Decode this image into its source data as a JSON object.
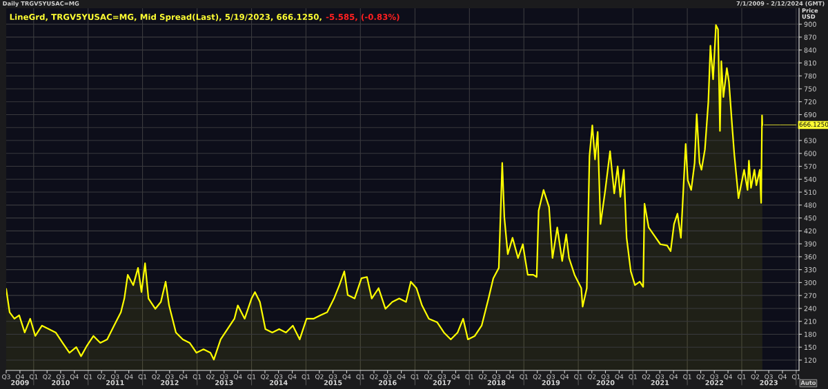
{
  "chart_data": {
    "type": "area",
    "title": "LineGrd, TRGV5YUSAC=MG, Mid Spread(Last), 5/19/2023, 666.1250,",
    "subtitle": "-5.585, (-0.83%)",
    "ylabel": "Price\nUSD",
    "annotations": [
      "Daily TRGV5YUSAC=MG",
      "7/1/2009 - 2/12/2024 (GMT)",
      "Auto",
      {
        "text": "666.1250",
        "x": "2023-05-19",
        "y": 666.125
      }
    ],
    "x": [
      "2009-07-01",
      "2009-07-24",
      "2009-08-25",
      "2009-09-26",
      "2009-11-02",
      "2009-12-09",
      "2010-01-12",
      "2010-02-26",
      "2010-04-13",
      "2010-05-29",
      "2010-07-14",
      "2010-08-29",
      "2010-10-14",
      "2010-11-15",
      "2010-12-22",
      "2011-02-06",
      "2011-03-24",
      "2011-05-09",
      "2011-06-24",
      "2011-08-09",
      "2011-09-01",
      "2011-09-24",
      "2011-10-31",
      "2011-12-02",
      "2011-12-25",
      "2012-01-18",
      "2012-02-10",
      "2012-03-27",
      "2012-05-03",
      "2012-06-04",
      "2012-06-27",
      "2012-08-12",
      "2012-09-27",
      "2012-11-12",
      "2012-12-28",
      "2013-02-13",
      "2013-03-31",
      "2013-04-23",
      "2013-06-08",
      "2013-07-24",
      "2013-09-08",
      "2013-10-01",
      "2013-11-16",
      "2014-01-01",
      "2014-01-24",
      "2014-02-26",
      "2014-04-04",
      "2014-05-20",
      "2014-07-05",
      "2014-08-20",
      "2014-10-05",
      "2014-11-20",
      "2015-01-05",
      "2015-02-20",
      "2015-04-07",
      "2015-05-23",
      "2015-07-08",
      "2015-08-13",
      "2015-09-15",
      "2015-10-08",
      "2015-11-23",
      "2016-01-08",
      "2016-02-14",
      "2016-03-17",
      "2016-05-02",
      "2016-06-17",
      "2016-08-02",
      "2016-09-17",
      "2016-11-02",
      "2016-12-04",
      "2017-01-11",
      "2017-02-17",
      "2017-04-04",
      "2017-05-29",
      "2017-07-14",
      "2017-08-29",
      "2017-10-14",
      "2017-11-20",
      "2017-12-22",
      "2018-02-06",
      "2018-03-24",
      "2018-05-09",
      "2018-06-10",
      "2018-07-17",
      "2018-08-09",
      "2018-08-23",
      "2018-09-15",
      "2018-10-17",
      "2018-11-23",
      "2018-12-25",
      "2019-01-27",
      "2019-03-05",
      "2019-03-28",
      "2019-04-10",
      "2019-05-13",
      "2019-06-19",
      "2019-07-12",
      "2019-08-13",
      "2019-09-15",
      "2019-10-12",
      "2019-10-31",
      "2019-12-07",
      "2020-01-21",
      "2020-01-30",
      "2020-02-27",
      "2020-03-16",
      "2020-04-04",
      "2020-04-22",
      "2020-05-10",
      "2020-05-29",
      "2020-06-30",
      "2020-08-01",
      "2020-08-29",
      "2020-09-21",
      "2020-10-09",
      "2020-11-01",
      "2020-11-20",
      "2020-12-18",
      "2021-01-15",
      "2021-02-16",
      "2021-03-11",
      "2021-03-20",
      "2021-04-17",
      "2021-05-19",
      "2021-07-04",
      "2021-08-19",
      "2021-09-11",
      "2021-10-04",
      "2021-10-27",
      "2021-11-19",
      "2021-12-21",
      "2022-01-04",
      "2022-01-27",
      "2022-02-19",
      "2022-03-05",
      "2022-03-24",
      "2022-04-06",
      "2022-04-29",
      "2022-05-22",
      "2022-06-05",
      "2022-06-23",
      "2022-07-12",
      "2022-07-26",
      "2022-08-08",
      "2022-08-17",
      "2022-08-31",
      "2022-09-23",
      "2022-10-07",
      "2022-10-30",
      "2022-11-12",
      "2022-12-05",
      "2022-12-10",
      "2023-01-17",
      "2023-02-09",
      "2023-02-18",
      "2023-03-04",
      "2023-03-27",
      "2023-04-09",
      "2023-05-02",
      "2023-05-11",
      "2023-05-17",
      "2023-05-19"
    ],
    "series": [
      {
        "color": "#ffff00",
        "values": [
          285,
          231,
          216,
          224,
          184,
          216,
          176,
          200,
          192,
          184,
          160,
          137,
          150,
          129,
          152,
          176,
          160,
          168,
          200,
          231,
          263,
          318,
          294,
          334,
          278,
          345,
          263,
          239,
          255,
          302,
          247,
          184,
          168,
          160,
          137,
          145,
          137,
          121,
          168,
          192,
          216,
          247,
          216,
          263,
          278,
          255,
          192,
          184,
          192,
          184,
          200,
          168,
          216,
          216,
          224,
          231,
          263,
          294,
          326,
          271,
          263,
          310,
          313,
          263,
          287,
          239,
          255,
          263,
          255,
          302,
          287,
          247,
          216,
          208,
          184,
          168,
          184,
          216,
          168,
          176,
          200,
          263,
          310,
          334,
          578,
          452,
          366,
          404,
          357,
          389,
          318,
          318,
          313,
          467,
          515,
          475,
          357,
          428,
          350,
          412,
          357,
          318,
          287,
          244,
          287,
          594,
          665,
          586,
          650,
          436,
          515,
          605,
          507,
          570,
          499,
          562,
          404,
          326,
          294,
          302,
          290,
          483,
          428,
          412,
          389,
          386,
          373,
          436,
          460,
          404,
          622,
          538,
          515,
          578,
          691,
          578,
          562,
          609,
          720,
          850,
          772,
          898,
          888,
          652,
          814,
          731,
          798,
          767,
          657,
          598,
          515,
          496,
          562,
          515,
          583,
          520,
          562,
          526,
          562,
          485,
          688,
          666.125
        ]
      }
    ],
    "xlim": [
      "2009-07-01",
      "2024-01-20"
    ],
    "xticks": [
      {
        "value": "2009-07-01",
        "label": "Q3"
      },
      {
        "value": "2009-10-01",
        "label": "Q4"
      },
      {
        "value": "2010-01-01",
        "label": "Q1"
      },
      {
        "value": "2010-04-01",
        "label": "Q2"
      },
      {
        "value": "2010-07-01",
        "label": "Q3"
      },
      {
        "value": "2010-10-01",
        "label": "Q4"
      },
      {
        "value": "2011-01-01",
        "label": "Q1"
      },
      {
        "value": "2011-04-01",
        "label": "Q2"
      },
      {
        "value": "2011-07-01",
        "label": "Q3"
      },
      {
        "value": "2011-10-01",
        "label": "Q4"
      },
      {
        "value": "2012-01-01",
        "label": "Q1"
      },
      {
        "value": "2012-04-01",
        "label": "Q2"
      },
      {
        "value": "2012-07-01",
        "label": "Q3"
      },
      {
        "value": "2012-10-01",
        "label": "Q4"
      },
      {
        "value": "2013-01-01",
        "label": "Q1"
      },
      {
        "value": "2013-04-01",
        "label": "Q2"
      },
      {
        "value": "2013-07-01",
        "label": "Q3"
      },
      {
        "value": "2013-10-01",
        "label": "Q4"
      },
      {
        "value": "2014-01-01",
        "label": "Q1"
      },
      {
        "value": "2014-04-01",
        "label": "Q2"
      },
      {
        "value": "2014-07-01",
        "label": "Q3"
      },
      {
        "value": "2014-10-01",
        "label": "Q4"
      },
      {
        "value": "2015-01-01",
        "label": "Q1"
      },
      {
        "value": "2015-04-01",
        "label": "Q2"
      },
      {
        "value": "2015-07-01",
        "label": "Q3"
      },
      {
        "value": "2015-10-01",
        "label": "Q4"
      },
      {
        "value": "2016-01-01",
        "label": "Q1"
      },
      {
        "value": "2016-04-01",
        "label": "Q2"
      },
      {
        "value": "2016-07-01",
        "label": "Q3"
      },
      {
        "value": "2016-10-01",
        "label": "Q4"
      },
      {
        "value": "2017-01-01",
        "label": "Q1"
      },
      {
        "value": "2017-04-01",
        "label": "Q2"
      },
      {
        "value": "2017-07-01",
        "label": "Q3"
      },
      {
        "value": "2017-10-01",
        "label": "Q4"
      },
      {
        "value": "2018-01-01",
        "label": "Q1"
      },
      {
        "value": "2018-04-01",
        "label": "Q2"
      },
      {
        "value": "2018-07-01",
        "label": "Q3"
      },
      {
        "value": "2018-10-01",
        "label": "Q4"
      },
      {
        "value": "2019-01-01",
        "label": "Q1"
      },
      {
        "value": "2019-04-01",
        "label": "Q2"
      },
      {
        "value": "2019-07-01",
        "label": "Q3"
      },
      {
        "value": "2019-10-01",
        "label": "Q4"
      },
      {
        "value": "2020-01-01",
        "label": "Q1"
      },
      {
        "value": "2020-04-01",
        "label": "Q2"
      },
      {
        "value": "2020-07-01",
        "label": "Q3"
      },
      {
        "value": "2020-10-01",
        "label": "Q4"
      },
      {
        "value": "2021-01-01",
        "label": "Q1"
      },
      {
        "value": "2021-04-01",
        "label": "Q2"
      },
      {
        "value": "2021-07-01",
        "label": "Q3"
      },
      {
        "value": "2021-10-01",
        "label": "Q4"
      },
      {
        "value": "2022-01-01",
        "label": "Q1"
      },
      {
        "value": "2022-04-01",
        "label": "Q2"
      },
      {
        "value": "2022-07-01",
        "label": "Q3"
      },
      {
        "value": "2022-10-01",
        "label": "Q4"
      },
      {
        "value": "2023-01-01",
        "label": "Q1"
      },
      {
        "value": "2023-04-01",
        "label": "Q2"
      },
      {
        "value": "2023-07-01",
        "label": "Q3"
      },
      {
        "value": "2023-10-01",
        "label": "Q4"
      },
      {
        "value": "2024-01-01",
        "label": "Q1"
      }
    ],
    "x2ticks": [
      {
        "value": "2009-10-01",
        "label": "2009"
      },
      {
        "value": "2010-07-01",
        "label": "2010"
      },
      {
        "value": "2011-07-01",
        "label": "2011"
      },
      {
        "value": "2012-07-01",
        "label": "2012"
      },
      {
        "value": "2013-07-01",
        "label": "2013"
      },
      {
        "value": "2014-07-01",
        "label": "2014"
      },
      {
        "value": "2015-07-01",
        "label": "2015"
      },
      {
        "value": "2016-07-01",
        "label": "2016"
      },
      {
        "value": "2017-07-01",
        "label": "2017"
      },
      {
        "value": "2018-07-01",
        "label": "2018"
      },
      {
        "value": "2019-07-01",
        "label": "2019"
      },
      {
        "value": "2020-07-01",
        "label": "2020"
      },
      {
        "value": "2021-07-01",
        "label": "2021"
      },
      {
        "value": "2022-07-01",
        "label": "2022"
      },
      {
        "value": "2023-07-01",
        "label": "2023"
      },
      {
        "value": "2010-01-01",
        "label": null
      },
      {
        "value": "2011-01-01",
        "label": null
      },
      {
        "value": "2012-01-01",
        "label": null
      },
      {
        "value": "2013-01-01",
        "label": null
      },
      {
        "value": "2014-01-01",
        "label": null
      },
      {
        "value": "2015-01-01",
        "label": null
      },
      {
        "value": "2016-01-01",
        "label": null
      },
      {
        "value": "2017-01-01",
        "label": null
      },
      {
        "value": "2018-01-01",
        "label": null
      },
      {
        "value": "2019-01-01",
        "label": null
      },
      {
        "value": "2020-01-01",
        "label": null
      },
      {
        "value": "2021-01-01",
        "label": null
      },
      {
        "value": "2022-01-01",
        "label": null
      },
      {
        "value": "2023-01-01",
        "label": null
      },
      {
        "value": "2024-01-01",
        "label": null
      }
    ],
    "x2lim": [
      "2009-07-01",
      "2024-01-20"
    ],
    "ylim": [
      96,
      937
    ],
    "yticks": [
      120,
      150,
      180,
      210,
      240,
      270,
      300,
      330,
      360,
      390,
      420,
      450,
      480,
      510,
      540,
      570,
      600,
      630,
      {
        "value": 660,
        "label": null
      },
      690,
      720,
      750,
      780,
      810,
      840,
      870,
      900
    ],
    "grid": true,
    "line_style": "solid"
  }
}
